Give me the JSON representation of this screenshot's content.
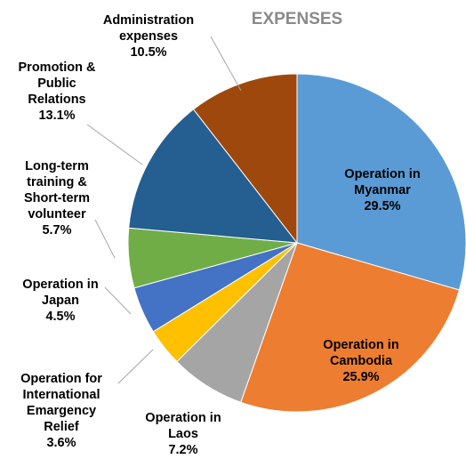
{
  "chart_data": {
    "type": "pie",
    "title": "EXPENSES",
    "slices": [
      {
        "label": [
          "Operation in",
          "Myanmar"
        ],
        "value": 29.5,
        "value_text": "29.5%",
        "color": "#5b9bd5"
      },
      {
        "label": [
          "Operation in",
          "Cambodia"
        ],
        "value": 25.9,
        "value_text": "25.9%",
        "color": "#ed7d31"
      },
      {
        "label": [
          "Operation in",
          "Laos"
        ],
        "value": 7.2,
        "value_text": "7.2%",
        "color": "#a5a5a5"
      },
      {
        "label": [
          "Operation for",
          "International",
          "Emargency",
          "Relief"
        ],
        "value": 3.6,
        "value_text": "3.6%",
        "color": "#ffc000"
      },
      {
        "label": [
          "Operation in",
          "Japan"
        ],
        "value": 4.5,
        "value_text": "4.5%",
        "color": "#4472c4"
      },
      {
        "label": [
          "Long-term",
          "training &",
          "Short-term",
          "volunteer"
        ],
        "value": 5.7,
        "value_text": "5.7%",
        "color": "#70ad47"
      },
      {
        "label": [
          "Promotion &",
          "Public",
          "Relations"
        ],
        "value": 13.1,
        "value_text": "13.1%",
        "color": "#255e91"
      },
      {
        "label": [
          "Administration",
          "expenses"
        ],
        "value": 10.5,
        "value_text": "10.5%",
        "color": "#9e480e"
      }
    ],
    "legend": "none",
    "grid": false
  }
}
